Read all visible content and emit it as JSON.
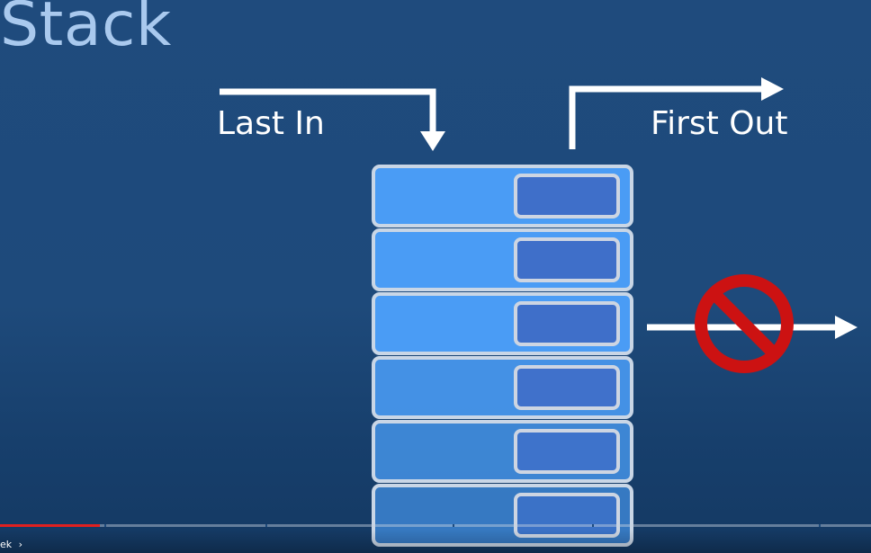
{
  "slide": {
    "title": "Stack",
    "label_last_in": "Last In",
    "label_first_out": "First Out"
  },
  "stack": {
    "block_count": 6,
    "colors": {
      "block_fill": "#4a9cf5",
      "block_border": "#c9d6e6",
      "inner_fill": "#3f6fc9",
      "inner_border": "#cdd5e2",
      "arrow": "#ffffff",
      "prohibit": "#cc1212"
    },
    "icons": [
      "arrow-down-icon",
      "arrow-right-icon",
      "no-entry-icon"
    ]
  },
  "player": {
    "progress_fraction": 0.115,
    "progress_color": "#e0201f",
    "chapter_marks_fraction": [
      0.12,
      0.305,
      0.52,
      0.68,
      0.94
    ],
    "chapter_label": "ek",
    "chapter_chevron": "›"
  }
}
